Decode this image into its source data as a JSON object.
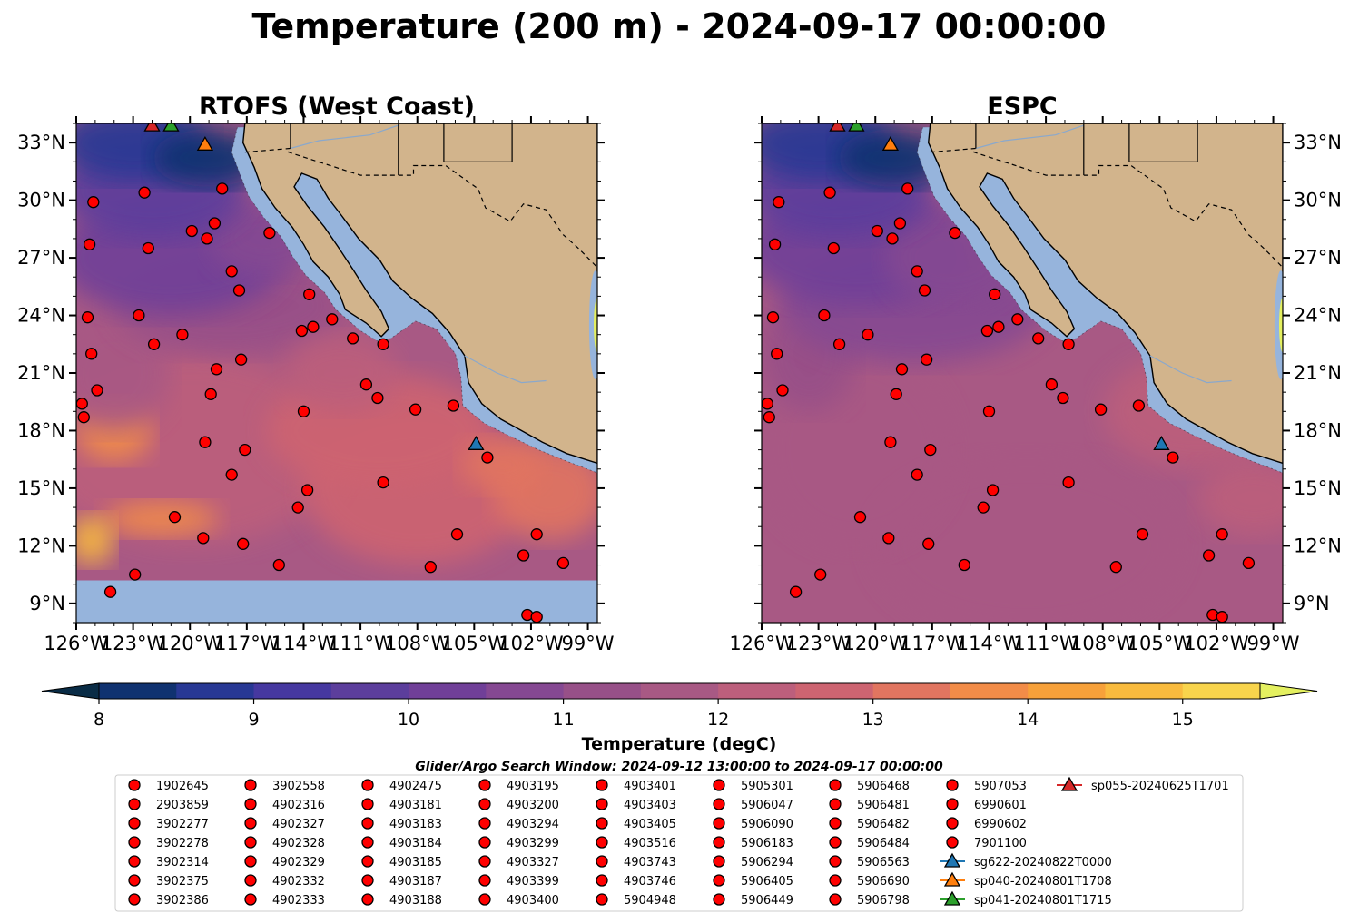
{
  "figure": {
    "suptitle": "Temperature (200 m) - 2024-09-17 00:00:00",
    "search_window": "Glider/Argo Search Window: 2024-09-12 13:00:00 to 2024-09-17 00:00:00"
  },
  "chart_data": {
    "type": "heatmap",
    "panels": [
      {
        "title": "RTOFS (West Coast)",
        "lat_labels_side": "left",
        "nodata_below_lat": 10.2
      },
      {
        "title": "ESPC",
        "lat_labels_side": "right"
      }
    ],
    "xlim": [
      -126,
      -98.5
    ],
    "ylim": [
      8,
      34
    ],
    "x_ticks": [
      -126,
      -123,
      -120,
      -117,
      -114,
      -111,
      -108,
      -105,
      -102,
      -99
    ],
    "x_tick_labels": [
      "126°W",
      "123°W",
      "120°W",
      "117°W",
      "114°W",
      "111°W",
      "108°W",
      "105°W",
      "102°W",
      "99°W"
    ],
    "y_ticks": [
      9,
      12,
      15,
      18,
      21,
      24,
      27,
      30,
      33
    ],
    "y_tick_labels": [
      "9°N",
      "12°N",
      "15°N",
      "18°N",
      "21°N",
      "24°N",
      "27°N",
      "30°N",
      "33°N"
    ],
    "colorbar": {
      "label": "Temperature (degC)",
      "range": [
        8,
        15.5
      ],
      "step": 0.5,
      "extend": "both",
      "ticks": [
        8,
        9,
        10,
        11,
        12,
        13,
        14,
        15
      ],
      "tick_labels": [
        "8",
        "9",
        "10",
        "11",
        "12",
        "13",
        "14",
        "15"
      ],
      "colors": [
        "#0a2c46",
        "#103270",
        "#283894",
        "#4638a0",
        "#5c3e9c",
        "#703f98",
        "#854892",
        "#975088",
        "#a85984",
        "#bc5f7c",
        "#cd6471",
        "#e17560",
        "#f28c48",
        "#f7a13a",
        "#f9bb3e",
        "#f8d44c",
        "#e4f060"
      ]
    },
    "land_color": "#d2b48c",
    "shelf_color": "#96b4dc",
    "floats": [
      {
        "name": "1902645",
        "lon": -125.1,
        "lat": 29.9
      },
      {
        "name": "2903859",
        "lon": -125.3,
        "lat": 27.7
      },
      {
        "name": "3902277",
        "lon": -125.4,
        "lat": 23.9
      },
      {
        "name": "3902278",
        "lon": -125.2,
        "lat": 22.0
      },
      {
        "name": "3902314",
        "lon": -124.9,
        "lat": 20.1
      },
      {
        "name": "3902375",
        "lon": -125.7,
        "lat": 19.4
      },
      {
        "name": "3902386",
        "lon": -125.6,
        "lat": 18.7
      },
      {
        "name": "3902558",
        "lon": -122.4,
        "lat": 30.4
      },
      {
        "name": "4902316",
        "lon": -122.2,
        "lat": 27.5
      },
      {
        "name": "4902327",
        "lon": -122.7,
        "lat": 24.0
      },
      {
        "name": "4902328",
        "lon": -121.9,
        "lat": 22.5
      },
      {
        "name": "4902329",
        "lon": -120.4,
        "lat": 23.0
      },
      {
        "name": "4902332",
        "lon": -119.9,
        "lat": 28.4
      },
      {
        "name": "4902333",
        "lon": -119.1,
        "lat": 28.0
      },
      {
        "name": "4902475",
        "lon": -118.3,
        "lat": 30.6
      },
      {
        "name": "4903181",
        "lon": -118.7,
        "lat": 28.8
      },
      {
        "name": "4903183",
        "lon": -117.8,
        "lat": 26.3
      },
      {
        "name": "4903184",
        "lon": -117.4,
        "lat": 25.3
      },
      {
        "name": "4903185",
        "lon": -118.6,
        "lat": 21.2
      },
      {
        "name": "4903187",
        "lon": -117.3,
        "lat": 21.7
      },
      {
        "name": "4903188",
        "lon": -118.9,
        "lat": 19.9
      },
      {
        "name": "4903195",
        "lon": -119.2,
        "lat": 17.4
      },
      {
        "name": "4903200",
        "lon": -117.1,
        "lat": 17.0
      },
      {
        "name": "4903294",
        "lon": -117.8,
        "lat": 15.7
      },
      {
        "name": "4903299",
        "lon": -119.3,
        "lat": 12.4
      },
      {
        "name": "4903327",
        "lon": -117.2,
        "lat": 12.1
      },
      {
        "name": "4903399",
        "lon": -122.9,
        "lat": 10.5
      },
      {
        "name": "4903400",
        "lon": -124.2,
        "lat": 9.6
      },
      {
        "name": "4903401",
        "lon": -115.8,
        "lat": 28.3
      },
      {
        "name": "4903403",
        "lon": -113.7,
        "lat": 25.1
      },
      {
        "name": "4903405",
        "lon": -114.1,
        "lat": 23.2
      },
      {
        "name": "4903516",
        "lon": -113.5,
        "lat": 23.4
      },
      {
        "name": "4903743",
        "lon": -112.5,
        "lat": 23.8
      },
      {
        "name": "4903746",
        "lon": -111.4,
        "lat": 22.8
      },
      {
        "name": "5904948",
        "lon": -109.8,
        "lat": 22.5
      },
      {
        "name": "5905301",
        "lon": -114.0,
        "lat": 19.0
      },
      {
        "name": "5906047",
        "lon": -110.7,
        "lat": 20.4
      },
      {
        "name": "5906090",
        "lon": -110.1,
        "lat": 19.7
      },
      {
        "name": "5906183",
        "lon": -108.1,
        "lat": 19.1
      },
      {
        "name": "5906294",
        "lon": -106.1,
        "lat": 19.3
      },
      {
        "name": "5906405",
        "lon": -113.8,
        "lat": 14.9
      },
      {
        "name": "5906449",
        "lon": -114.3,
        "lat": 14.0
      },
      {
        "name": "5906468",
        "lon": -109.8,
        "lat": 15.3
      },
      {
        "name": "5906481",
        "lon": -104.3,
        "lat": 16.6
      },
      {
        "name": "5906482",
        "lon": -105.9,
        "lat": 12.6
      },
      {
        "name": "5906484",
        "lon": -102.4,
        "lat": 11.5
      },
      {
        "name": "5906563",
        "lon": -101.7,
        "lat": 12.6
      },
      {
        "name": "5906690",
        "lon": -100.3,
        "lat": 11.1
      },
      {
        "name": "5906798",
        "lon": -102.2,
        "lat": 8.4
      },
      {
        "name": "5907053",
        "lon": -101.7,
        "lat": 8.3
      },
      {
        "name": "6990601",
        "lon": -120.8,
        "lat": 13.5
      },
      {
        "name": "6990602",
        "lon": -115.3,
        "lat": 11.0
      },
      {
        "name": "7901100",
        "lon": -107.3,
        "lat": 10.9
      }
    ],
    "legend_order": [
      "1902645",
      "2903859",
      "3902277",
      "3902278",
      "3902314",
      "3902375",
      "3902386",
      "3902558",
      "4902316",
      "4902327",
      "4902328",
      "4902329",
      "4902332",
      "4902333",
      "4902475",
      "4903181",
      "4903183",
      "4903184",
      "4903185",
      "4903187",
      "4903188",
      "4903195",
      "4903200",
      "4903294",
      "4903299",
      "4903327",
      "4903399",
      "4903400",
      "4903401",
      "4903403",
      "4903405",
      "4903516",
      "4903743",
      "4903746",
      "5904948",
      "5905301",
      "5906047",
      "5906090",
      "5906183",
      "5906294",
      "5906405",
      "5906449",
      "5906468",
      "5906481",
      "5906482",
      "5906484",
      "5906563",
      "5906690",
      "5906798",
      "5907053",
      "6990601",
      "6990602",
      "7901100"
    ],
    "float_color": "#ff0000",
    "gliders": [
      {
        "name": "sg622-20240822T0000",
        "color": "#1f77b4",
        "lon": -104.9,
        "lat": 17.3
      },
      {
        "name": "sp040-20240801T1708",
        "color": "#ff7f0e",
        "lon": -119.2,
        "lat": 32.9
      },
      {
        "name": "sp041-20240801T1715",
        "color": "#2ca02c",
        "lon": -121.0,
        "lat": 33.9
      },
      {
        "name": "sp055-20240625T1701",
        "color": "#d62728",
        "lon": -122.0,
        "lat": 33.9
      }
    ],
    "legend_placement": "bottom"
  }
}
